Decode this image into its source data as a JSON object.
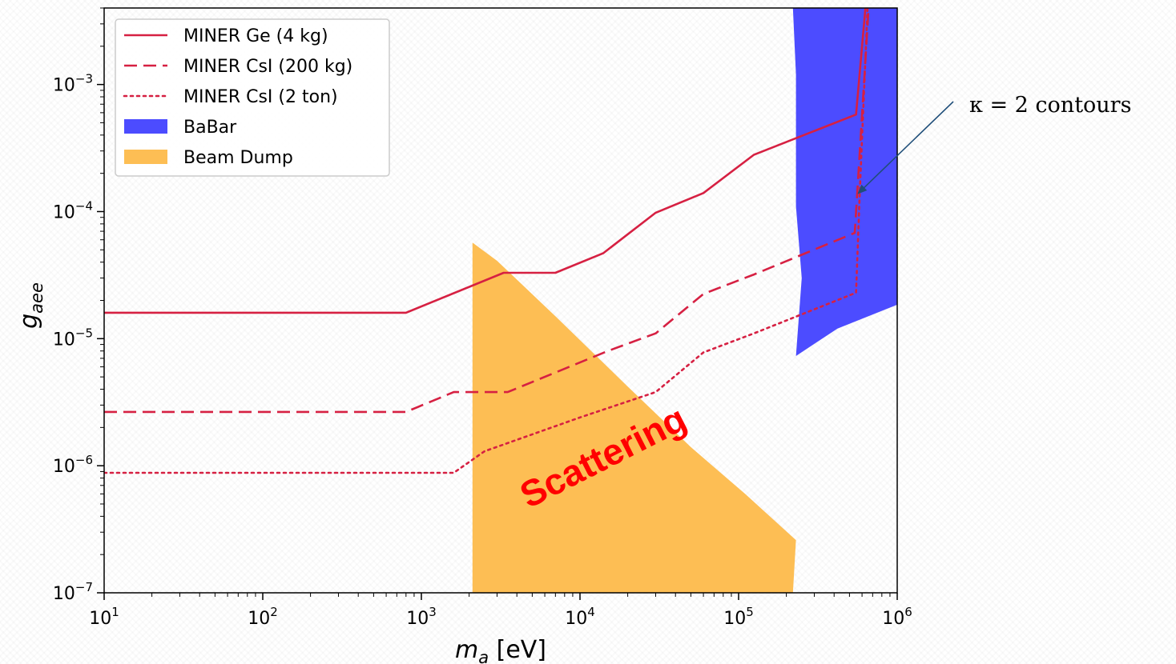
{
  "chart_data": {
    "type": "line",
    "xlabel": "m_a [eV]",
    "xlabel_base": "m",
    "xlabel_sub": "a",
    "xlabel_unit": "[eV]",
    "ylabel": "g_aee",
    "ylabel_base": "g",
    "ylabel_sub": "aee",
    "xscale": "log",
    "yscale": "log",
    "xlim": [
      10,
      1000000
    ],
    "ylim": [
      1e-07,
      0.004
    ],
    "x_ticks": [
      {
        "base": "10",
        "exp": "1",
        "value": 10
      },
      {
        "base": "10",
        "exp": "2",
        "value": 100
      },
      {
        "base": "10",
        "exp": "3",
        "value": 1000
      },
      {
        "base": "10",
        "exp": "4",
        "value": 10000
      },
      {
        "base": "10",
        "exp": "5",
        "value": 100000
      },
      {
        "base": "10",
        "exp": "6",
        "value": 1000000
      }
    ],
    "y_ticks": [
      {
        "base": "10",
        "exp": "−7",
        "value": 1e-07
      },
      {
        "base": "10",
        "exp": "−6",
        "value": 1e-06
      },
      {
        "base": "10",
        "exp": "−5",
        "value": 1e-05
      },
      {
        "base": "10",
        "exp": "−4",
        "value": 0.0001
      },
      {
        "base": "10",
        "exp": "−3",
        "value": 0.001
      }
    ],
    "grid": false,
    "legend_position": "top-left",
    "series": [
      {
        "name": "MINER Ge (4 kg)",
        "style": "solid",
        "color": "#d62042",
        "points": [
          [
            10,
            1.6e-05
          ],
          [
            800,
            1.6e-05
          ],
          [
            3300,
            3.3e-05
          ],
          [
            7000,
            3.3e-05
          ],
          [
            14000,
            4.7e-05
          ],
          [
            30000,
            9.8e-05
          ],
          [
            60000,
            0.00014
          ],
          [
            125000,
            0.00028
          ],
          [
            550000,
            0.00058
          ],
          [
            630000,
            0.004
          ]
        ]
      },
      {
        "name": "MINER CsI (200 kg)",
        "style": "dashed",
        "color": "#d62042",
        "points": [
          [
            10,
            2.65e-06
          ],
          [
            800,
            2.65e-06
          ],
          [
            1600,
            3.8e-06
          ],
          [
            3500,
            3.8e-06
          ],
          [
            15000,
            8e-06
          ],
          [
            30000,
            1.1e-05
          ],
          [
            60000,
            2.25e-05
          ],
          [
            125000,
            3.2e-05
          ],
          [
            540000,
            6.8e-05
          ],
          [
            660000,
            0.004
          ]
        ]
      },
      {
        "name": "MINER CsI (2 ton)",
        "style": "dotted",
        "color": "#d62042",
        "points": [
          [
            10,
            8.8e-07
          ],
          [
            1600,
            8.8e-07
          ],
          [
            2500,
            1.3e-06
          ],
          [
            10000,
            2.4e-06
          ],
          [
            30000,
            3.8e-06
          ],
          [
            60000,
            7.8e-06
          ],
          [
            125000,
            1.1e-05
          ],
          [
            550000,
            2.3e-05
          ],
          [
            580000,
            0.00014
          ],
          [
            650000,
            0.004
          ]
        ]
      }
    ],
    "regions": [
      {
        "name": "BaBar",
        "color": "#4c4cff",
        "points": [
          [
            220000,
            0.004
          ],
          [
            230000,
            0.0012
          ],
          [
            230000,
            0.00011
          ],
          [
            250000,
            3e-05
          ],
          [
            230000,
            7.3e-06
          ],
          [
            420000,
            1.2e-05
          ],
          [
            1000000,
            1.85e-05
          ],
          [
            1000000,
            0.004
          ]
        ]
      },
      {
        "name": "Beam Dump",
        "color": "#fdbe54",
        "points": [
          [
            2100,
            5.7e-05
          ],
          [
            3000,
            4.1e-05
          ],
          [
            7000,
            1.5e-05
          ],
          [
            20000,
            4.2e-06
          ],
          [
            50000,
            1.4e-06
          ],
          [
            110000,
            6e-07
          ],
          [
            230000,
            2.6e-07
          ],
          [
            220000,
            1e-07
          ],
          [
            2100,
            1e-07
          ]
        ]
      }
    ],
    "legend": [
      {
        "label": "MINER Ge (4 kg)",
        "kind": "solid"
      },
      {
        "label": "MINER CsI (200 kg)",
        "kind": "dashed"
      },
      {
        "label": "MINER CsI (2 ton)",
        "kind": "dotted"
      },
      {
        "label": "BaBar",
        "kind": "patch",
        "color": "#4c4cff"
      },
      {
        "label": "Beam Dump",
        "kind": "patch",
        "color": "#fdbe54"
      }
    ],
    "annotations": {
      "scattering_label": "Scattering",
      "kappa_label": "κ = 2 contours",
      "kappa_arrow_target": [
        570000,
        0.00014
      ]
    }
  }
}
